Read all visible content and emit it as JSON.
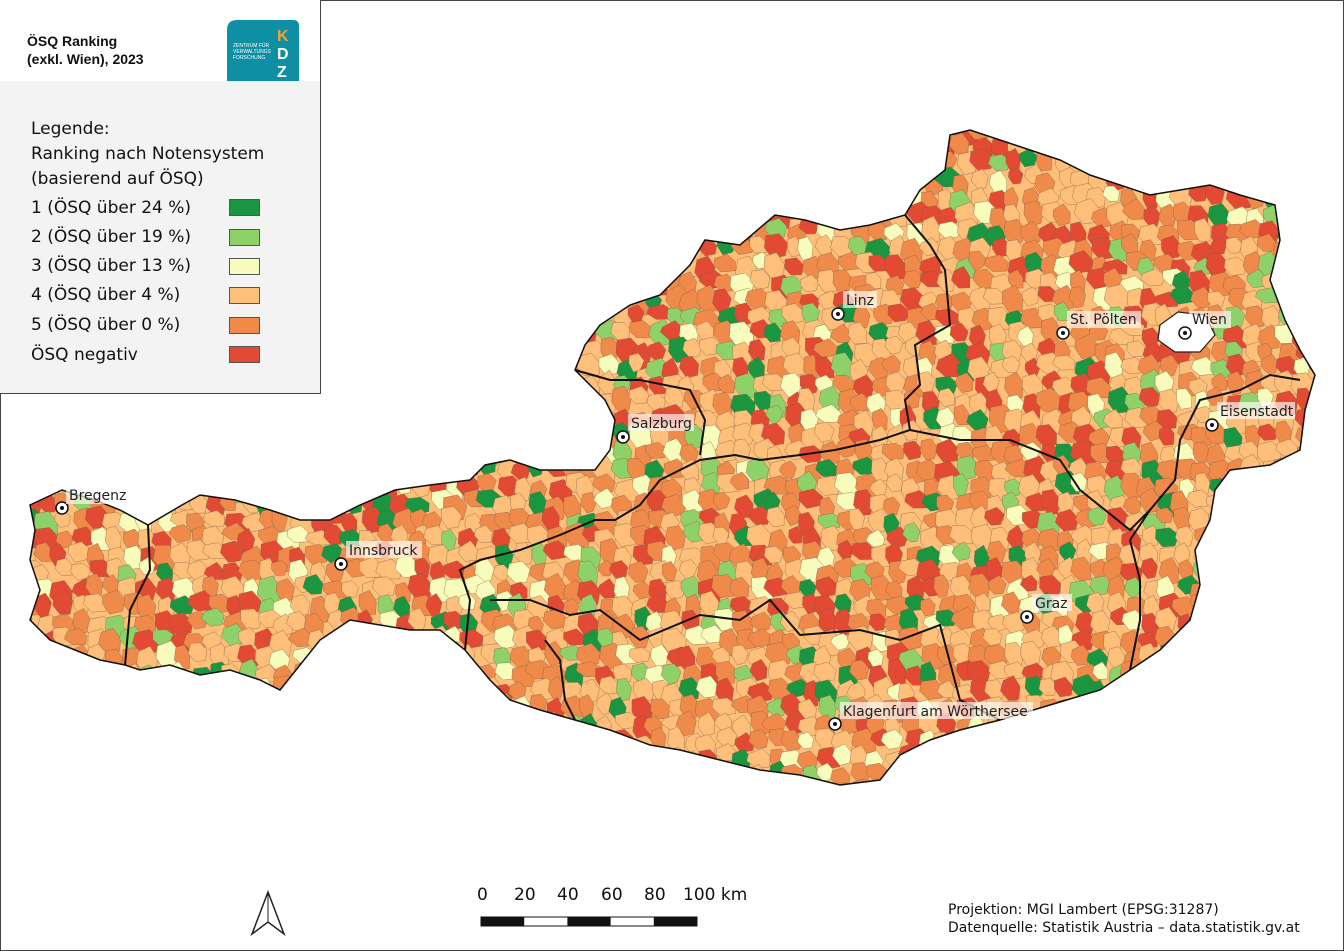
{
  "title": {
    "line1": "ÖSQ Ranking",
    "line2": "(exkl. Wien), 2023"
  },
  "logo": {
    "text": "ZENTRUM FÜR VERWALTUNGS FORSCHUNG",
    "letters": "KDZ",
    "bg_color": "#0f8fa3",
    "accent_color": "#f2a23a"
  },
  "legend": {
    "heading": "Legende:",
    "subheading_1": "Ranking nach Notensystem",
    "subheading_2": "(basierend auf ÖSQ)",
    "items": [
      {
        "label": "1 (ÖSQ über 24 %)",
        "color": "#1a9641"
      },
      {
        "label": "2 (ÖSQ über 19 %)",
        "color": "#8fd169"
      },
      {
        "label": "3 (ÖSQ über 13 %)",
        "color": "#f7fbbc"
      },
      {
        "label": "4 (ÖSQ über 4 %)",
        "color": "#fdbf7a"
      },
      {
        "label": "5 (ÖSQ über 0 %)",
        "color": "#f08a4b"
      },
      {
        "label": "ÖSQ negativ",
        "color": "#e34a33"
      }
    ]
  },
  "cities": [
    {
      "name": "Bregenz"
    },
    {
      "name": "Innsbruck"
    },
    {
      "name": "Salzburg"
    },
    {
      "name": "Linz"
    },
    {
      "name": "St. Pölten"
    },
    {
      "name": "Wien"
    },
    {
      "name": "Eisenstadt"
    },
    {
      "name": "Graz"
    },
    {
      "name": "Klagenfurt am Wörthersee"
    }
  ],
  "scale": {
    "labels": [
      "0",
      "20",
      "40",
      "60",
      "80",
      "100 km"
    ]
  },
  "credits": {
    "projection": "Projektion: MGI Lambert (EPSG:31287)",
    "source": "Datenquelle: Statistik Austria – data.statistik.gv.at"
  }
}
